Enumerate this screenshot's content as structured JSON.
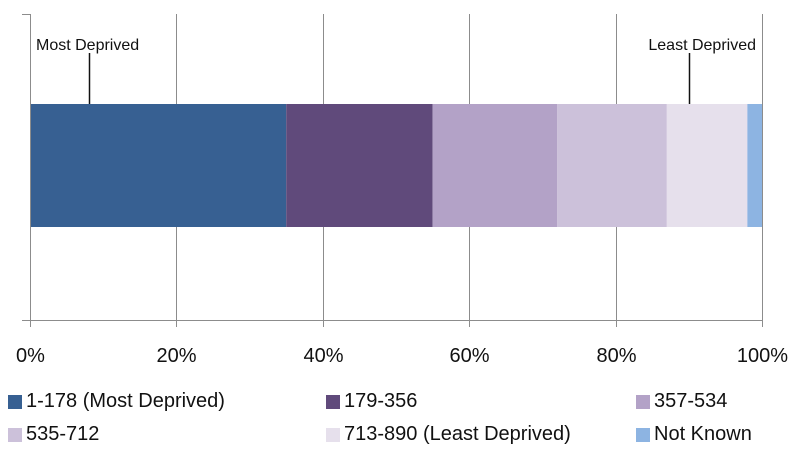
{
  "chart_data": {
    "type": "bar",
    "orientation": "horizontal",
    "stacked": true,
    "normalized": true,
    "categories": [
      ""
    ],
    "series": [
      {
        "name": "1-178 (Most Deprived)",
        "values": [
          0.35
        ],
        "color": "#376092"
      },
      {
        "name": "179-356",
        "values": [
          0.2
        ],
        "color": "#604A7B"
      },
      {
        "name": "357-534",
        "values": [
          0.17
        ],
        "color": "#B3A2C7"
      },
      {
        "name": "535-712",
        "values": [
          0.15
        ],
        "color": "#CCC1DA"
      },
      {
        "name": "713-890 (Least Deprived)",
        "values": [
          0.11
        ],
        "color": "#E6E0EC"
      },
      {
        "name": "Not Known",
        "values": [
          0.02
        ],
        "color": "#8DB4E2"
      }
    ],
    "xlim": [
      0,
      1
    ],
    "x_ticks": [
      0,
      0.2,
      0.4,
      0.6,
      0.8,
      1.0
    ],
    "x_tick_labels": [
      "0%",
      "20%",
      "40%",
      "60%",
      "80%",
      "100%"
    ],
    "grid": "vertical",
    "legend_position": "bottom",
    "annotations": [
      {
        "text": "Most Deprived",
        "x": 0.08
      },
      {
        "text": "Least Deprived",
        "x": 0.9
      }
    ]
  }
}
